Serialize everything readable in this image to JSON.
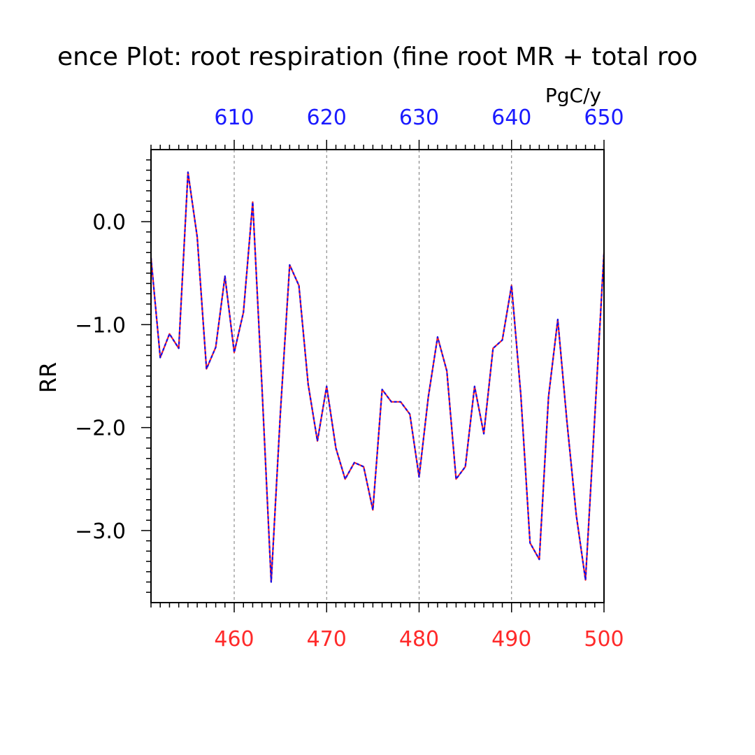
{
  "chart_data": {
    "type": "line",
    "title": "ence Plot: root respiration (fine root MR + total roo",
    "ylabel": "RR",
    "top_axis_unit": "PgC/y",
    "xlim": [
      451,
      500
    ],
    "top_xlim": [
      601,
      650
    ],
    "ylim": [
      -3.7,
      0.7
    ],
    "x_ticks_bottom": [
      "460",
      "470",
      "480",
      "490",
      "500"
    ],
    "x_ticks_top": [
      "610",
      "620",
      "630",
      "640",
      "650"
    ],
    "y_ticks": [
      "0.0",
      "−1.0",
      "−2.0",
      "−3.0"
    ],
    "x_tick_values_bottom": [
      460,
      470,
      480,
      490,
      500
    ],
    "y_tick_values": [
      0,
      -1,
      -2,
      -3
    ],
    "grid": "dashed vertical lines at major x ticks",
    "colors": {
      "bottom_axis": "#ff2a2a",
      "top_axis": "#1a1aff",
      "series_a": "#ff2020",
      "series_b": "#1010ee",
      "grid": "#777777"
    },
    "x": [
      451,
      452,
      453,
      454,
      455,
      456,
      457,
      458,
      459,
      460,
      461,
      462,
      463,
      464,
      465,
      466,
      467,
      468,
      469,
      470,
      471,
      472,
      473,
      474,
      475,
      476,
      477,
      478,
      479,
      480,
      481,
      482,
      483,
      484,
      485,
      486,
      487,
      488,
      489,
      490,
      491,
      492,
      493,
      494,
      495,
      496,
      497,
      498,
      499,
      500
    ],
    "series": [
      {
        "values": [
          -0.35,
          -1.32,
          -1.09,
          -1.23,
          0.48,
          -0.15,
          -1.43,
          -1.22,
          -0.53,
          -1.27,
          -0.88,
          0.19,
          -1.6,
          -3.5,
          -1.85,
          -0.42,
          -0.62,
          -1.58,
          -2.13,
          -1.6,
          -2.2,
          -2.5,
          -2.34,
          -2.38,
          -2.8,
          -1.63,
          -1.75,
          -1.75,
          -1.87,
          -2.48,
          -1.7,
          -1.12,
          -1.45,
          -2.5,
          -2.38,
          -1.6,
          -2.06,
          -1.23,
          -1.15,
          -0.62,
          -1.68,
          -3.12,
          -3.28,
          -1.7,
          -0.95,
          -1.95,
          -2.85,
          -3.48,
          -1.9,
          -0.3
        ]
      },
      {
        "values": [
          -0.35,
          -1.32,
          -1.09,
          -1.23,
          0.48,
          -0.15,
          -1.43,
          -1.22,
          -0.53,
          -1.27,
          -0.88,
          0.19,
          -1.6,
          -3.5,
          -1.85,
          -0.42,
          -0.62,
          -1.58,
          -2.13,
          -1.6,
          -2.2,
          -2.5,
          -2.34,
          -2.38,
          -2.8,
          -1.63,
          -1.75,
          -1.75,
          -1.87,
          -2.48,
          -1.7,
          -1.12,
          -1.45,
          -2.5,
          -2.38,
          -1.6,
          -2.06,
          -1.23,
          -1.15,
          -0.62,
          -1.68,
          -3.12,
          -3.28,
          -1.7,
          -0.95,
          -1.95,
          -2.85,
          -3.48,
          -1.9,
          -0.3
        ]
      }
    ]
  }
}
